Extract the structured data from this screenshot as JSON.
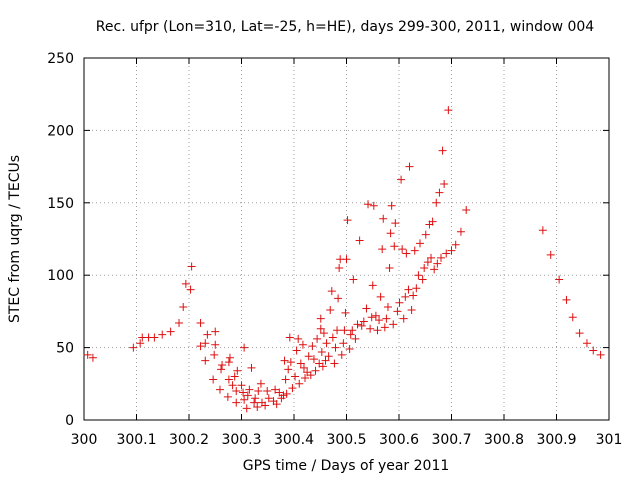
{
  "chart_data": {
    "type": "scatter",
    "title": "Rec. ufpr (Lon=310, Lat=-25, h=HE), days 299-300, 2011, window 004",
    "xlabel": "GPS time / Days of year 2011",
    "ylabel": "STEC from uqrg / TECUs",
    "xlim": [
      300,
      301
    ],
    "ylim": [
      0,
      250
    ],
    "xticks": [
      300,
      300.1,
      300.2,
      300.3,
      300.4,
      300.5,
      300.6,
      300.7,
      300.8,
      300.9,
      301
    ],
    "xtick_labels": [
      "300",
      "300.1",
      "300.2",
      "300.3",
      "300.4",
      "300.5",
      "300.6",
      "300.7",
      "300.8",
      "300.9",
      "301"
    ],
    "yticks": [
      0,
      50,
      100,
      150,
      200,
      250
    ],
    "ytick_labels": [
      "0",
      "50",
      "100",
      "150",
      "200",
      "250"
    ],
    "grid": true,
    "marker": "+",
    "color": "#dd1111",
    "points": [
      [
        300.007,
        45
      ],
      [
        300.017,
        43
      ],
      [
        300.094,
        50
      ],
      [
        300.107,
        53
      ],
      [
        300.111,
        57
      ],
      [
        300.123,
        57
      ],
      [
        300.134,
        57
      ],
      [
        300.149,
        59
      ],
      [
        300.165,
        61
      ],
      [
        300.181,
        67
      ],
      [
        300.189,
        78
      ],
      [
        300.194,
        94
      ],
      [
        300.203,
        90
      ],
      [
        300.205,
        106
      ],
      [
        300.222,
        51
      ],
      [
        300.222,
        67
      ],
      [
        300.231,
        41
      ],
      [
        300.231,
        53
      ],
      [
        300.235,
        59
      ],
      [
        300.246,
        28
      ],
      [
        300.248,
        45
      ],
      [
        300.25,
        52
      ],
      [
        300.25,
        61
      ],
      [
        300.259,
        21
      ],
      [
        300.261,
        35
      ],
      [
        300.263,
        38
      ],
      [
        300.274,
        16
      ],
      [
        300.276,
        28
      ],
      [
        300.276,
        40
      ],
      [
        300.278,
        43
      ],
      [
        300.283,
        24
      ],
      [
        300.287,
        30
      ],
      [
        300.29,
        12
      ],
      [
        300.29,
        20
      ],
      [
        300.292,
        34
      ],
      [
        300.3,
        24
      ],
      [
        300.303,
        19
      ],
      [
        300.305,
        14
      ],
      [
        300.305,
        50
      ],
      [
        300.31,
        8
      ],
      [
        300.312,
        17
      ],
      [
        300.315,
        21
      ],
      [
        300.319,
        36
      ],
      [
        300.324,
        12
      ],
      [
        300.326,
        15
      ],
      [
        300.33,
        9
      ],
      [
        300.332,
        20
      ],
      [
        300.337,
        25
      ],
      [
        300.339,
        12
      ],
      [
        300.345,
        10
      ],
      [
        300.349,
        20
      ],
      [
        300.352,
        15
      ],
      [
        300.361,
        13
      ],
      [
        300.364,
        21
      ],
      [
        300.367,
        11
      ],
      [
        300.372,
        19
      ],
      [
        300.376,
        15
      ],
      [
        300.38,
        17
      ],
      [
        300.382,
        41
      ],
      [
        300.384,
        28
      ],
      [
        300.386,
        18
      ],
      [
        300.389,
        35
      ],
      [
        300.392,
        57
      ],
      [
        300.394,
        40
      ],
      [
        300.397,
        22
      ],
      [
        300.402,
        30
      ],
      [
        300.405,
        48
      ],
      [
        300.408,
        56
      ],
      [
        300.41,
        25
      ],
      [
        300.413,
        39
      ],
      [
        300.417,
        52
      ],
      [
        300.419,
        36
      ],
      [
        300.421,
        29
      ],
      [
        300.425,
        33
      ],
      [
        300.428,
        44
      ],
      [
        300.432,
        31
      ],
      [
        300.435,
        51
      ],
      [
        300.438,
        42
      ],
      [
        300.441,
        34
      ],
      [
        300.444,
        56
      ],
      [
        300.448,
        39
      ],
      [
        300.451,
        70
      ],
      [
        300.451,
        63
      ],
      [
        300.453,
        47
      ],
      [
        300.455,
        37
      ],
      [
        300.457,
        60
      ],
      [
        300.46,
        41
      ],
      [
        300.462,
        53
      ],
      [
        300.466,
        44
      ],
      [
        300.469,
        76
      ],
      [
        300.472,
        89
      ],
      [
        300.474,
        57
      ],
      [
        300.477,
        39
      ],
      [
        300.479,
        50
      ],
      [
        300.482,
        62
      ],
      [
        300.484,
        84
      ],
      [
        300.486,
        105
      ],
      [
        300.488,
        111
      ],
      [
        300.491,
        45
      ],
      [
        300.494,
        53
      ],
      [
        300.496,
        62
      ],
      [
        300.498,
        74
      ],
      [
        300.5,
        111
      ],
      [
        300.502,
        138
      ],
      [
        300.506,
        49
      ],
      [
        300.508,
        59
      ],
      [
        300.511,
        62
      ],
      [
        300.513,
        97
      ],
      [
        300.517,
        56
      ],
      [
        300.521,
        66
      ],
      [
        300.525,
        124
      ],
      [
        300.529,
        65
      ],
      [
        300.533,
        68
      ],
      [
        300.538,
        77
      ],
      [
        300.541,
        149
      ],
      [
        300.545,
        63
      ],
      [
        300.548,
        71
      ],
      [
        300.55,
        93
      ],
      [
        300.552,
        148
      ],
      [
        300.556,
        72
      ],
      [
        300.559,
        62
      ],
      [
        300.562,
        69
      ],
      [
        300.565,
        85
      ],
      [
        300.568,
        118
      ],
      [
        300.57,
        139
      ],
      [
        300.573,
        64
      ],
      [
        300.576,
        70
      ],
      [
        300.579,
        78
      ],
      [
        300.582,
        105
      ],
      [
        300.584,
        129
      ],
      [
        300.586,
        148
      ],
      [
        300.589,
        66
      ],
      [
        300.591,
        120
      ],
      [
        300.593,
        136
      ],
      [
        300.597,
        75
      ],
      [
        300.601,
        81
      ],
      [
        300.604,
        166
      ],
      [
        300.606,
        118
      ],
      [
        300.609,
        70
      ],
      [
        300.612,
        85
      ],
      [
        300.614,
        115
      ],
      [
        300.618,
        90
      ],
      [
        300.62,
        175
      ],
      [
        300.624,
        76
      ],
      [
        300.627,
        86
      ],
      [
        300.63,
        117
      ],
      [
        300.633,
        91
      ],
      [
        300.637,
        100
      ],
      [
        300.64,
        122
      ],
      [
        300.645,
        97
      ],
      [
        300.648,
        105
      ],
      [
        300.651,
        128
      ],
      [
        300.655,
        109
      ],
      [
        300.658,
        135
      ],
      [
        300.661,
        112
      ],
      [
        300.664,
        137
      ],
      [
        300.667,
        104
      ],
      [
        300.671,
        150
      ],
      [
        300.673,
        108
      ],
      [
        300.677,
        157
      ],
      [
        300.68,
        112
      ],
      [
        300.683,
        186
      ],
      [
        300.686,
        163
      ],
      [
        300.69,
        115
      ],
      [
        300.694,
        214
      ],
      [
        300.7,
        117
      ],
      [
        300.708,
        121
      ],
      [
        300.718,
        130
      ],
      [
        300.728,
        145
      ],
      [
        300.874,
        131
      ],
      [
        300.889,
        114
      ],
      [
        300.905,
        97
      ],
      [
        300.919,
        83
      ],
      [
        300.931,
        71
      ],
      [
        300.944,
        60
      ],
      [
        300.958,
        53
      ],
      [
        300.97,
        48
      ],
      [
        300.984,
        45
      ]
    ]
  }
}
